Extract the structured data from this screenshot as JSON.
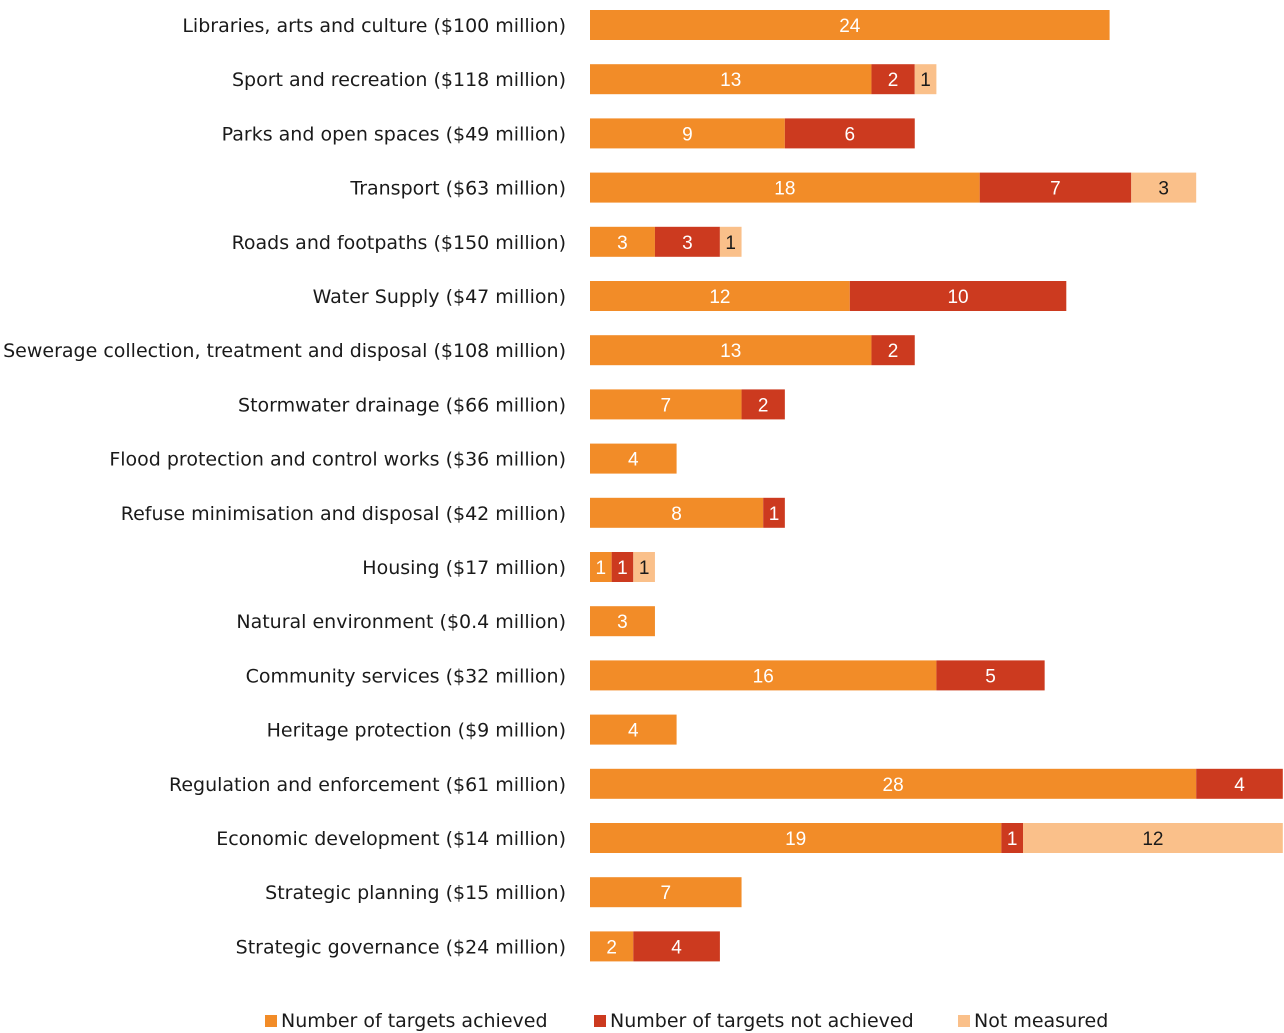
{
  "chart_data": {
    "type": "bar",
    "orientation": "horizontal",
    "stacked": true,
    "grid": false,
    "legend_position": "bottom",
    "categories": [
      "Libraries, arts and culture ($100 million)",
      "Sport and recreation ($118 million)",
      "Parks and open spaces  ($49 million)",
      "Transport ($63 million)",
      "Roads and footpaths ($150 million)",
      "Water Supply ($47 million)",
      "Sewerage collection, treatment and disposal ($108 million)",
      "Stormwater drainage ($66 million)",
      "Flood protection and control works ($36 million)",
      "Refuse minimisation and disposal ($42 million)",
      "Housing ($17 million)",
      "Natural environment ($0.4 million)",
      "Community services ($32 million)",
      "Heritage protection ($9 million)",
      "Regulation and enforcement ($61 million)",
      "Economic development ($14 million)",
      "Strategic planning ($15 million)",
      "Strategic governance ($24 million)"
    ],
    "series": [
      {
        "name": "Number of targets achieved",
        "color": "#F28C28",
        "label_color": "#ffffff",
        "values": [
          24,
          13,
          9,
          18,
          3,
          12,
          13,
          7,
          4,
          8,
          1,
          3,
          16,
          4,
          28,
          19,
          7,
          2
        ]
      },
      {
        "name": "Number of targets not achieved",
        "color": "#CC3A1F",
        "label_color": "#ffffff",
        "values": [
          0,
          2,
          6,
          7,
          3,
          10,
          2,
          2,
          0,
          1,
          1,
          0,
          5,
          0,
          4,
          1,
          0,
          4
        ]
      },
      {
        "name": "Not measured",
        "color": "#FAC08A",
        "label_color": "#1a1a1a",
        "values": [
          0,
          1,
          0,
          3,
          1,
          0,
          0,
          0,
          0,
          0,
          1,
          0,
          0,
          0,
          0,
          12,
          0,
          0
        ]
      }
    ]
  }
}
